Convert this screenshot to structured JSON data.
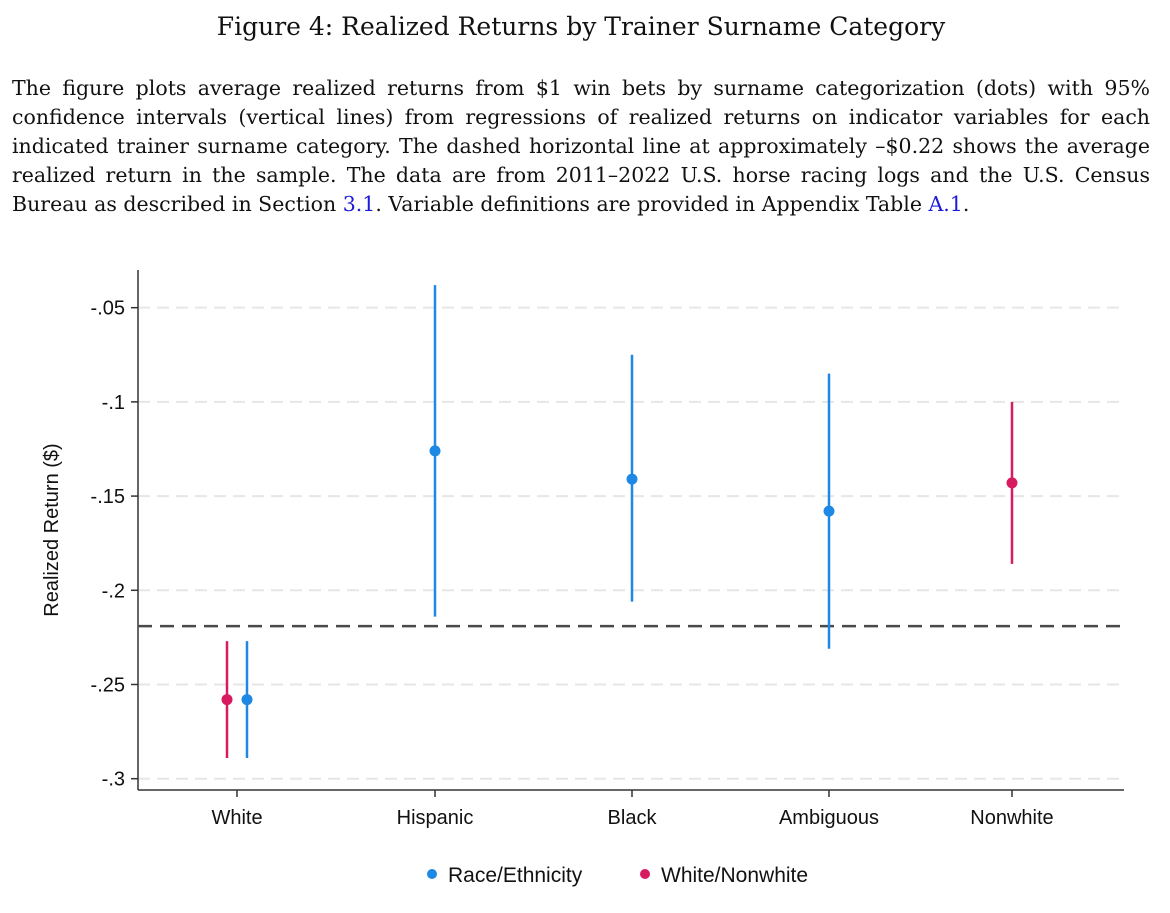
{
  "figure": {
    "title": "Figure 4: Realized Returns by Trainer Surname Category",
    "caption_parts": [
      "The figure plots average realized returns from $1 win bets by surname categorization (dots) with 95% confidence intervals (vertical lines) from regressions of realized returns on indicator variables for each indicated trainer surname category. The dashed horizontal line at approximately –$0.22 shows the average realized return in the sample. The data are from 2011–2022 U.S. horse racing logs and the U.S. Census Bureau as described in Section ",
      "3.1",
      ". Variable definitions are provided in Appendix Table ",
      "A.1",
      "."
    ]
  },
  "chart_data": {
    "type": "scatter",
    "subtype": "point-estimates-with-95pct-ci",
    "title": "",
    "xlabel": "",
    "ylabel": "Realized Return ($)",
    "categories": [
      "White",
      "Hispanic",
      "Black",
      "Ambiguous",
      "Nonwhite"
    ],
    "ylim": [
      -0.306,
      -0.03
    ],
    "yticks": [
      -0.05,
      -0.1,
      -0.15,
      -0.2,
      -0.25,
      -0.3
    ],
    "ytick_labels": [
      "-.05",
      "-.1",
      "-.15",
      "-.2",
      "-.25",
      "-.3"
    ],
    "grid": true,
    "reference_line": {
      "y": -0.219,
      "style": "dashed"
    },
    "legend_position": "bottom",
    "series": [
      {
        "name": "Race/Ethnicity",
        "color": "#1e88e5",
        "points": [
          {
            "category": "White",
            "y": -0.258,
            "lo": -0.289,
            "hi": -0.227
          },
          {
            "category": "Hispanic",
            "y": -0.126,
            "lo": -0.214,
            "hi": -0.038
          },
          {
            "category": "Black",
            "y": -0.141,
            "lo": -0.206,
            "hi": -0.075
          },
          {
            "category": "Ambiguous",
            "y": -0.158,
            "lo": -0.231,
            "hi": -0.085
          }
        ]
      },
      {
        "name": "White/Nonwhite",
        "color": "#d81b60",
        "points": [
          {
            "category": "White",
            "y": -0.258,
            "lo": -0.289,
            "hi": -0.227
          },
          {
            "category": "Nonwhite",
            "y": -0.143,
            "lo": -0.186,
            "hi": -0.1
          }
        ]
      }
    ]
  }
}
